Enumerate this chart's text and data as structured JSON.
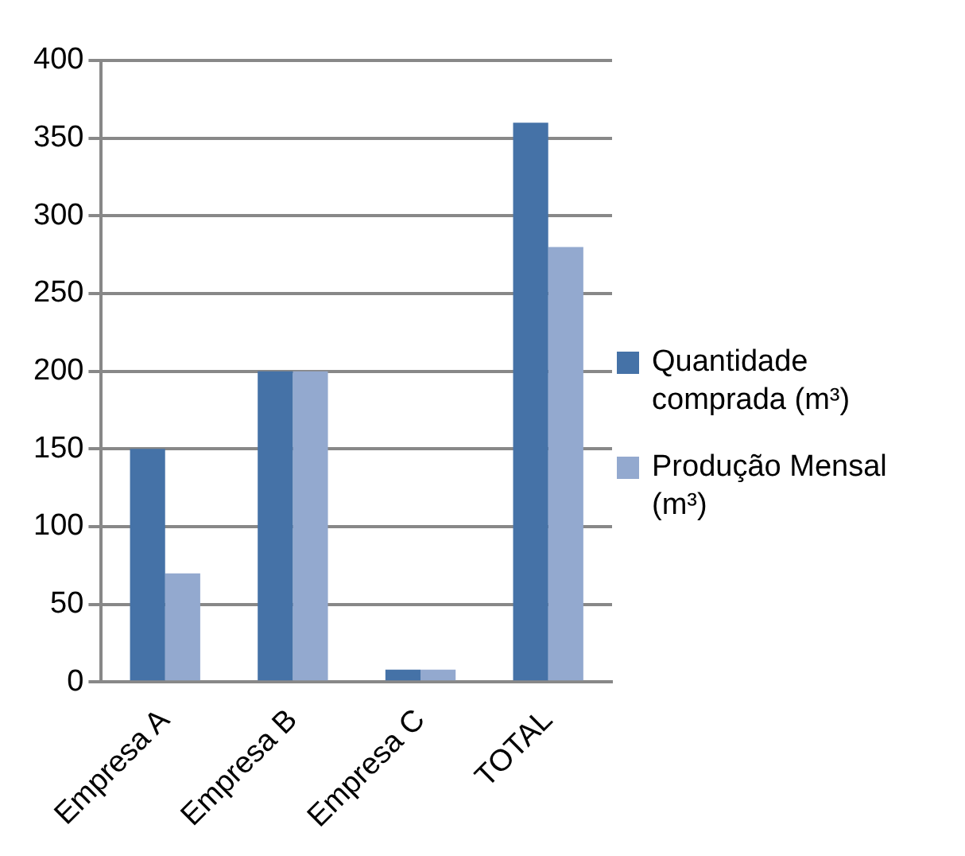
{
  "chart_data": {
    "type": "bar",
    "categories": [
      "Empresa A",
      "Empresa B",
      "Empresa C",
      "TOTAL"
    ],
    "series": [
      {
        "name": "Quantidade comprada (m³)",
        "color": "#4572a7",
        "values": [
          150,
          200,
          8,
          360
        ]
      },
      {
        "name": "Produção Mensal  (m³)",
        "color": "#93a9cf",
        "values": [
          70,
          200,
          8,
          280
        ]
      }
    ],
    "ylim": [
      0,
      400
    ],
    "yticks": [
      0,
      50,
      100,
      150,
      200,
      250,
      300,
      350,
      400
    ],
    "grid": "y",
    "legend": "right"
  }
}
